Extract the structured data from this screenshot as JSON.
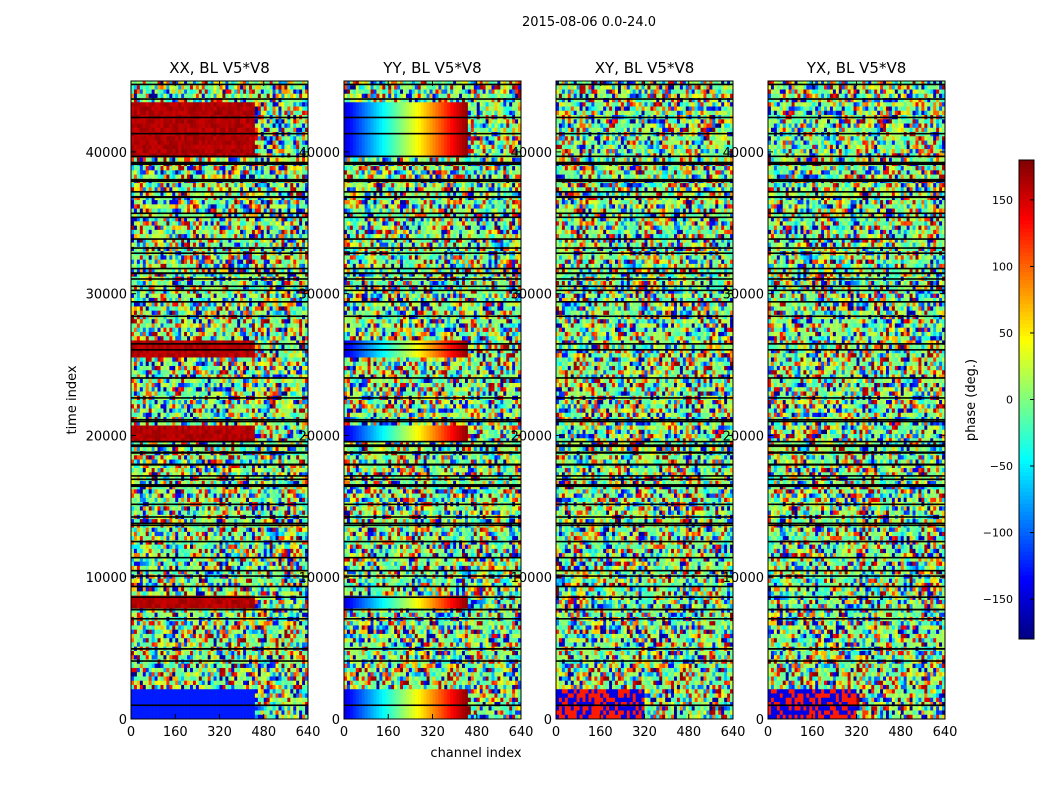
{
  "figure": {
    "suptitle": "2015-08-06 0.0-24.0"
  },
  "chart_data": {
    "type": "heatmap",
    "xlabel": "channel index",
    "ylabel": "time index",
    "xlim": [
      0,
      640
    ],
    "ylim": [
      0,
      45000
    ],
    "xticks": [
      0,
      160,
      320,
      480,
      640
    ],
    "yticks": [
      0,
      10000,
      20000,
      30000,
      40000
    ],
    "xtick_labels": [
      "0",
      "160",
      "320",
      "480",
      "640"
    ],
    "ytick_labels": [
      "0",
      "10000",
      "20000",
      "30000",
      "40000"
    ],
    "colorbar": {
      "label": "phase (deg.)",
      "range": [
        -180,
        180
      ],
      "ticks": [
        -150,
        -100,
        -50,
        0,
        50,
        100,
        150
      ],
      "tick_labels": [
        "−150",
        "−100",
        "−50",
        "0",
        "50",
        "100",
        "150"
      ],
      "colormap": "jet"
    },
    "panels": [
      {
        "title": "XX, BL V5*V8",
        "pol": "XX"
      },
      {
        "title": "YY, BL V5*V8",
        "pol": "YY"
      },
      {
        "title": "XY, BL V5*V8",
        "pol": "XY"
      },
      {
        "title": "YX, BL V5*V8",
        "pol": "YX"
      }
    ]
  }
}
